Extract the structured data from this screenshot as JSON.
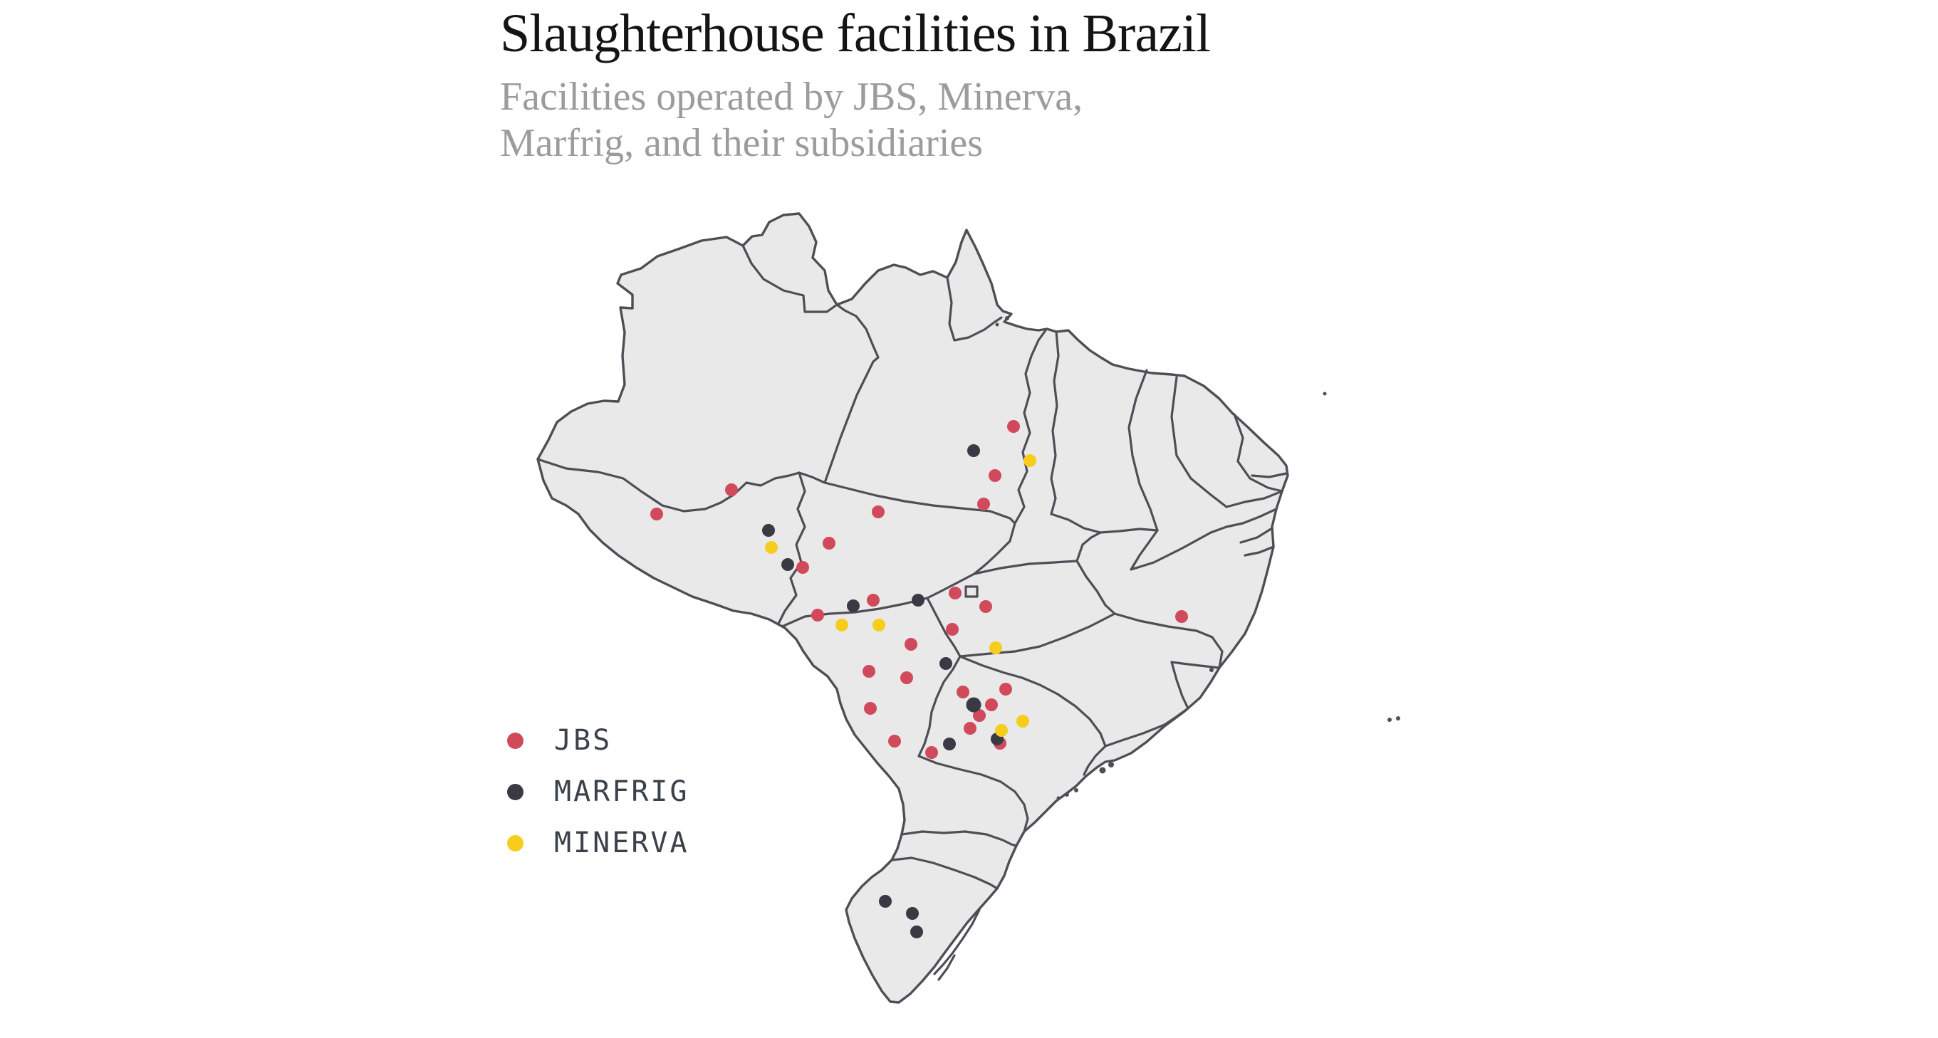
{
  "header": {
    "title": "Slaughterhouse facilities in Brazil",
    "subtitle_line1": "Facilities operated by JBS, Minerva,",
    "subtitle_line2": "Marfrig, and their subsidiaries"
  },
  "legend": {
    "items": [
      {
        "label": "JBS",
        "color": "#d04a5c"
      },
      {
        "label": "MARFRIG",
        "color": "#3a3a44"
      },
      {
        "label": "MINERVA",
        "color": "#f6cd1c"
      }
    ]
  },
  "map": {
    "land_fill": "#e9e9e9",
    "border_color": "#4e4e56",
    "background": "#ffffff"
  },
  "chart_data": {
    "type": "scatter",
    "title": "Slaughterhouse facilities in Brazil",
    "subtitle": "Facilities operated by JBS, Minerva, Marfrig, and their subsidiaries",
    "basemap": "Brazil with state boundaries",
    "legend_position": "left-bottom",
    "coordinate_units": "canvas px (2721x1453)",
    "dot_radius": 9,
    "series": [
      {
        "name": "JBS",
        "color": "#d04a5c",
        "points": [
          [
            922,
            722
          ],
          [
            1027,
            688
          ],
          [
            1127,
            797
          ],
          [
            1164,
            763
          ],
          [
            1233,
            719
          ],
          [
            1148,
            864
          ],
          [
            1226,
            843
          ],
          [
            1423,
            599
          ],
          [
            1397,
            668
          ],
          [
            1381,
            708
          ],
          [
            1341,
            833
          ],
          [
            1384,
            852
          ],
          [
            1337,
            884
          ],
          [
            1279,
            905
          ],
          [
            1273,
            952
          ],
          [
            1220,
            943
          ],
          [
            1222,
            995
          ],
          [
            1256,
            1041
          ],
          [
            1308,
            1057
          ],
          [
            1352,
            972
          ],
          [
            1412,
            968
          ],
          [
            1392,
            990
          ],
          [
            1375,
            1005
          ],
          [
            1362,
            1023
          ],
          [
            1404,
            1044
          ],
          [
            1659,
            866
          ]
        ]
      },
      {
        "name": "MARFRIG",
        "color": "#3a3a44",
        "points": [
          [
            1079,
            745
          ],
          [
            1106,
            793
          ],
          [
            1198,
            851
          ],
          [
            1289,
            843
          ],
          [
            1367,
            633
          ],
          [
            1328,
            932
          ],
          [
            1333,
            1045
          ],
          [
            1367,
            990,
            10.5
          ],
          [
            1400,
            1038
          ],
          [
            1243,
            1266
          ],
          [
            1281,
            1283
          ],
          [
            1287,
            1309
          ]
        ]
      },
      {
        "name": "MINERVA",
        "color": "#f6cd1c",
        "points": [
          [
            1083,
            769
          ],
          [
            1182,
            878
          ],
          [
            1234,
            878
          ],
          [
            1446,
            647
          ],
          [
            1398,
            910
          ],
          [
            1436,
            1013
          ],
          [
            1406,
            1026
          ]
        ]
      }
    ]
  }
}
